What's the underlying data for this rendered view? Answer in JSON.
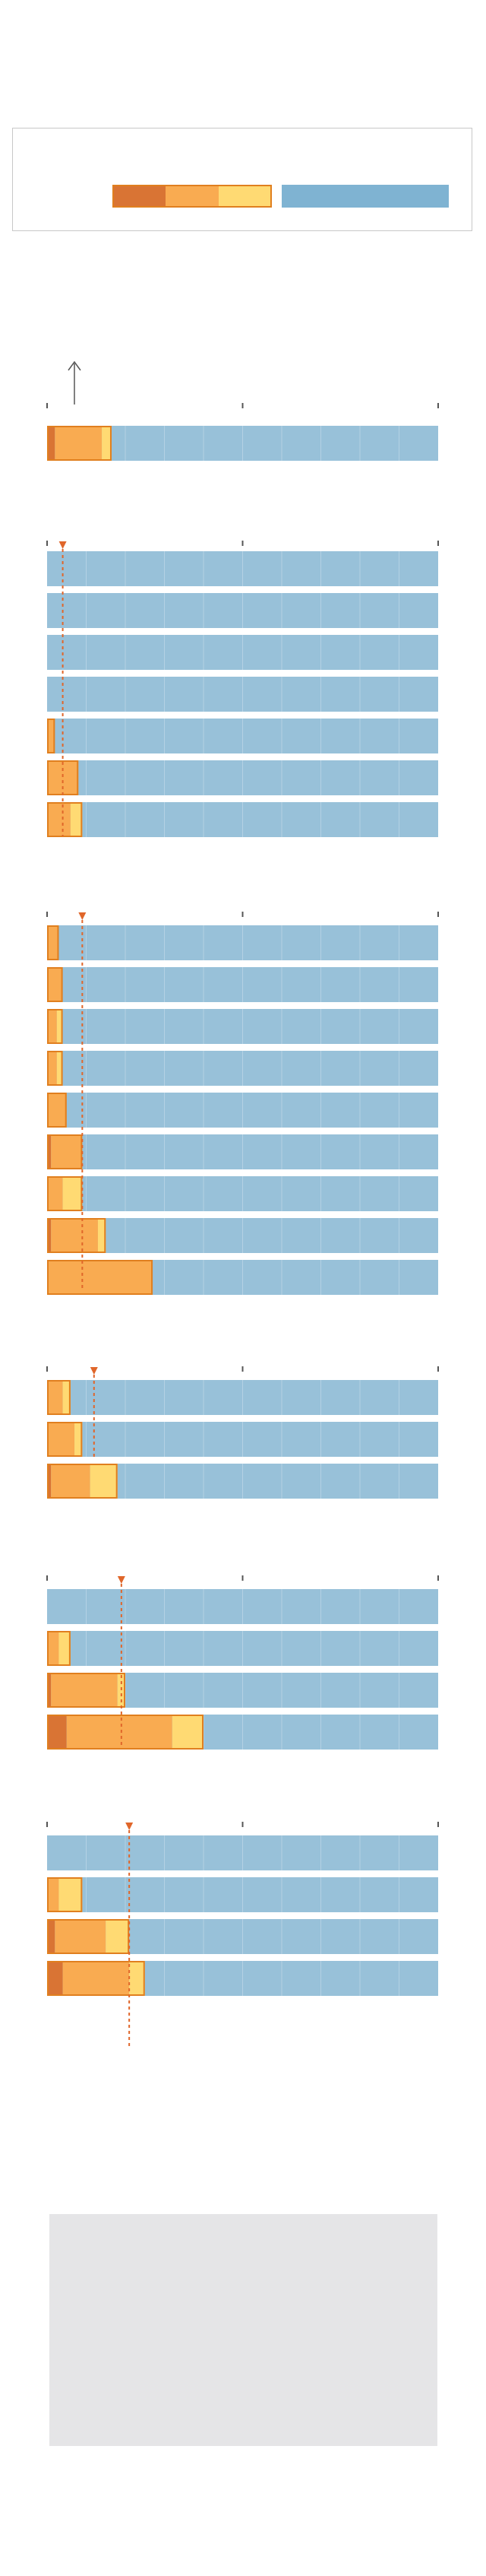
{
  "legend": {
    "items": [
      {
        "key": "tier1",
        "label": "",
        "color": "#d97434"
      },
      {
        "key": "tier2",
        "label": "",
        "color": "#f9ab51"
      },
      {
        "key": "tier3",
        "label": "",
        "color": "#ffda73"
      },
      {
        "key": "rest",
        "label": "",
        "color": "#7fb3d2"
      }
    ]
  },
  "colors": {
    "tier1": "#d97434",
    "tier2": "#f9ab51",
    "tier3": "#ffda73",
    "rest": "#98c1d9",
    "outline": "#e07f1f",
    "marker": "#e0662a",
    "axis": "#555555",
    "panel": "#e5e5e7"
  },
  "chart_data": {
    "type": "bar",
    "orientation": "horizontal",
    "stacked": true,
    "xlim": [
      0,
      100
    ],
    "grid": true,
    "groups": [
      {
        "name": "",
        "marker": null,
        "rows": [
          {
            "label": "",
            "values": [
              2,
              12,
              2.5
            ]
          }
        ]
      },
      {
        "name": "",
        "marker": 4,
        "rows": [
          {
            "label": "",
            "values": [
              0,
              0,
              0
            ]
          },
          {
            "label": "",
            "values": [
              0,
              0,
              0
            ]
          },
          {
            "label": "",
            "values": [
              0,
              0,
              0
            ]
          },
          {
            "label": "",
            "values": [
              0,
              0,
              0
            ]
          },
          {
            "label": "",
            "values": [
              0,
              2,
              0
            ]
          },
          {
            "label": "",
            "values": [
              0,
              8,
              0
            ]
          },
          {
            "label": "",
            "values": [
              0,
              6,
              3
            ]
          }
        ]
      },
      {
        "name": "",
        "marker": 9,
        "rows": [
          {
            "label": "",
            "values": [
              0,
              3,
              0
            ]
          },
          {
            "label": "",
            "values": [
              0,
              4,
              0
            ]
          },
          {
            "label": "",
            "values": [
              0,
              2.5,
              1.5
            ]
          },
          {
            "label": "",
            "values": [
              0,
              2.5,
              1.5
            ]
          },
          {
            "label": "",
            "values": [
              0,
              5,
              0
            ]
          },
          {
            "label": "",
            "values": [
              1,
              8,
              0
            ]
          },
          {
            "label": "",
            "values": [
              0,
              4,
              5
            ]
          },
          {
            "label": "",
            "values": [
              1,
              12,
              2
            ]
          },
          {
            "label": "",
            "values": [
              0,
              27,
              0
            ]
          }
        ]
      },
      {
        "name": "",
        "marker": 12,
        "rows": [
          {
            "label": "",
            "values": [
              0,
              4,
              2
            ]
          },
          {
            "label": "",
            "values": [
              0,
              7,
              2
            ]
          },
          {
            "label": "",
            "values": [
              1,
              10,
              7
            ]
          }
        ]
      },
      {
        "name": "",
        "marker": 19,
        "rows": [
          {
            "label": "",
            "values": [
              0,
              0,
              0
            ]
          },
          {
            "label": "",
            "values": [
              0,
              3,
              3
            ]
          },
          {
            "label": "",
            "values": [
              1,
              17,
              2
            ]
          },
          {
            "label": "",
            "values": [
              5,
              27,
              8
            ]
          }
        ]
      },
      {
        "name": "",
        "marker": 21,
        "rows": [
          {
            "label": "",
            "values": [
              0,
              0,
              0
            ]
          },
          {
            "label": "",
            "values": [
              0,
              3,
              6
            ]
          },
          {
            "label": "",
            "values": [
              2,
              13,
              6
            ]
          },
          {
            "label": "",
            "values": [
              4,
              17,
              4
            ]
          }
        ]
      }
    ]
  }
}
